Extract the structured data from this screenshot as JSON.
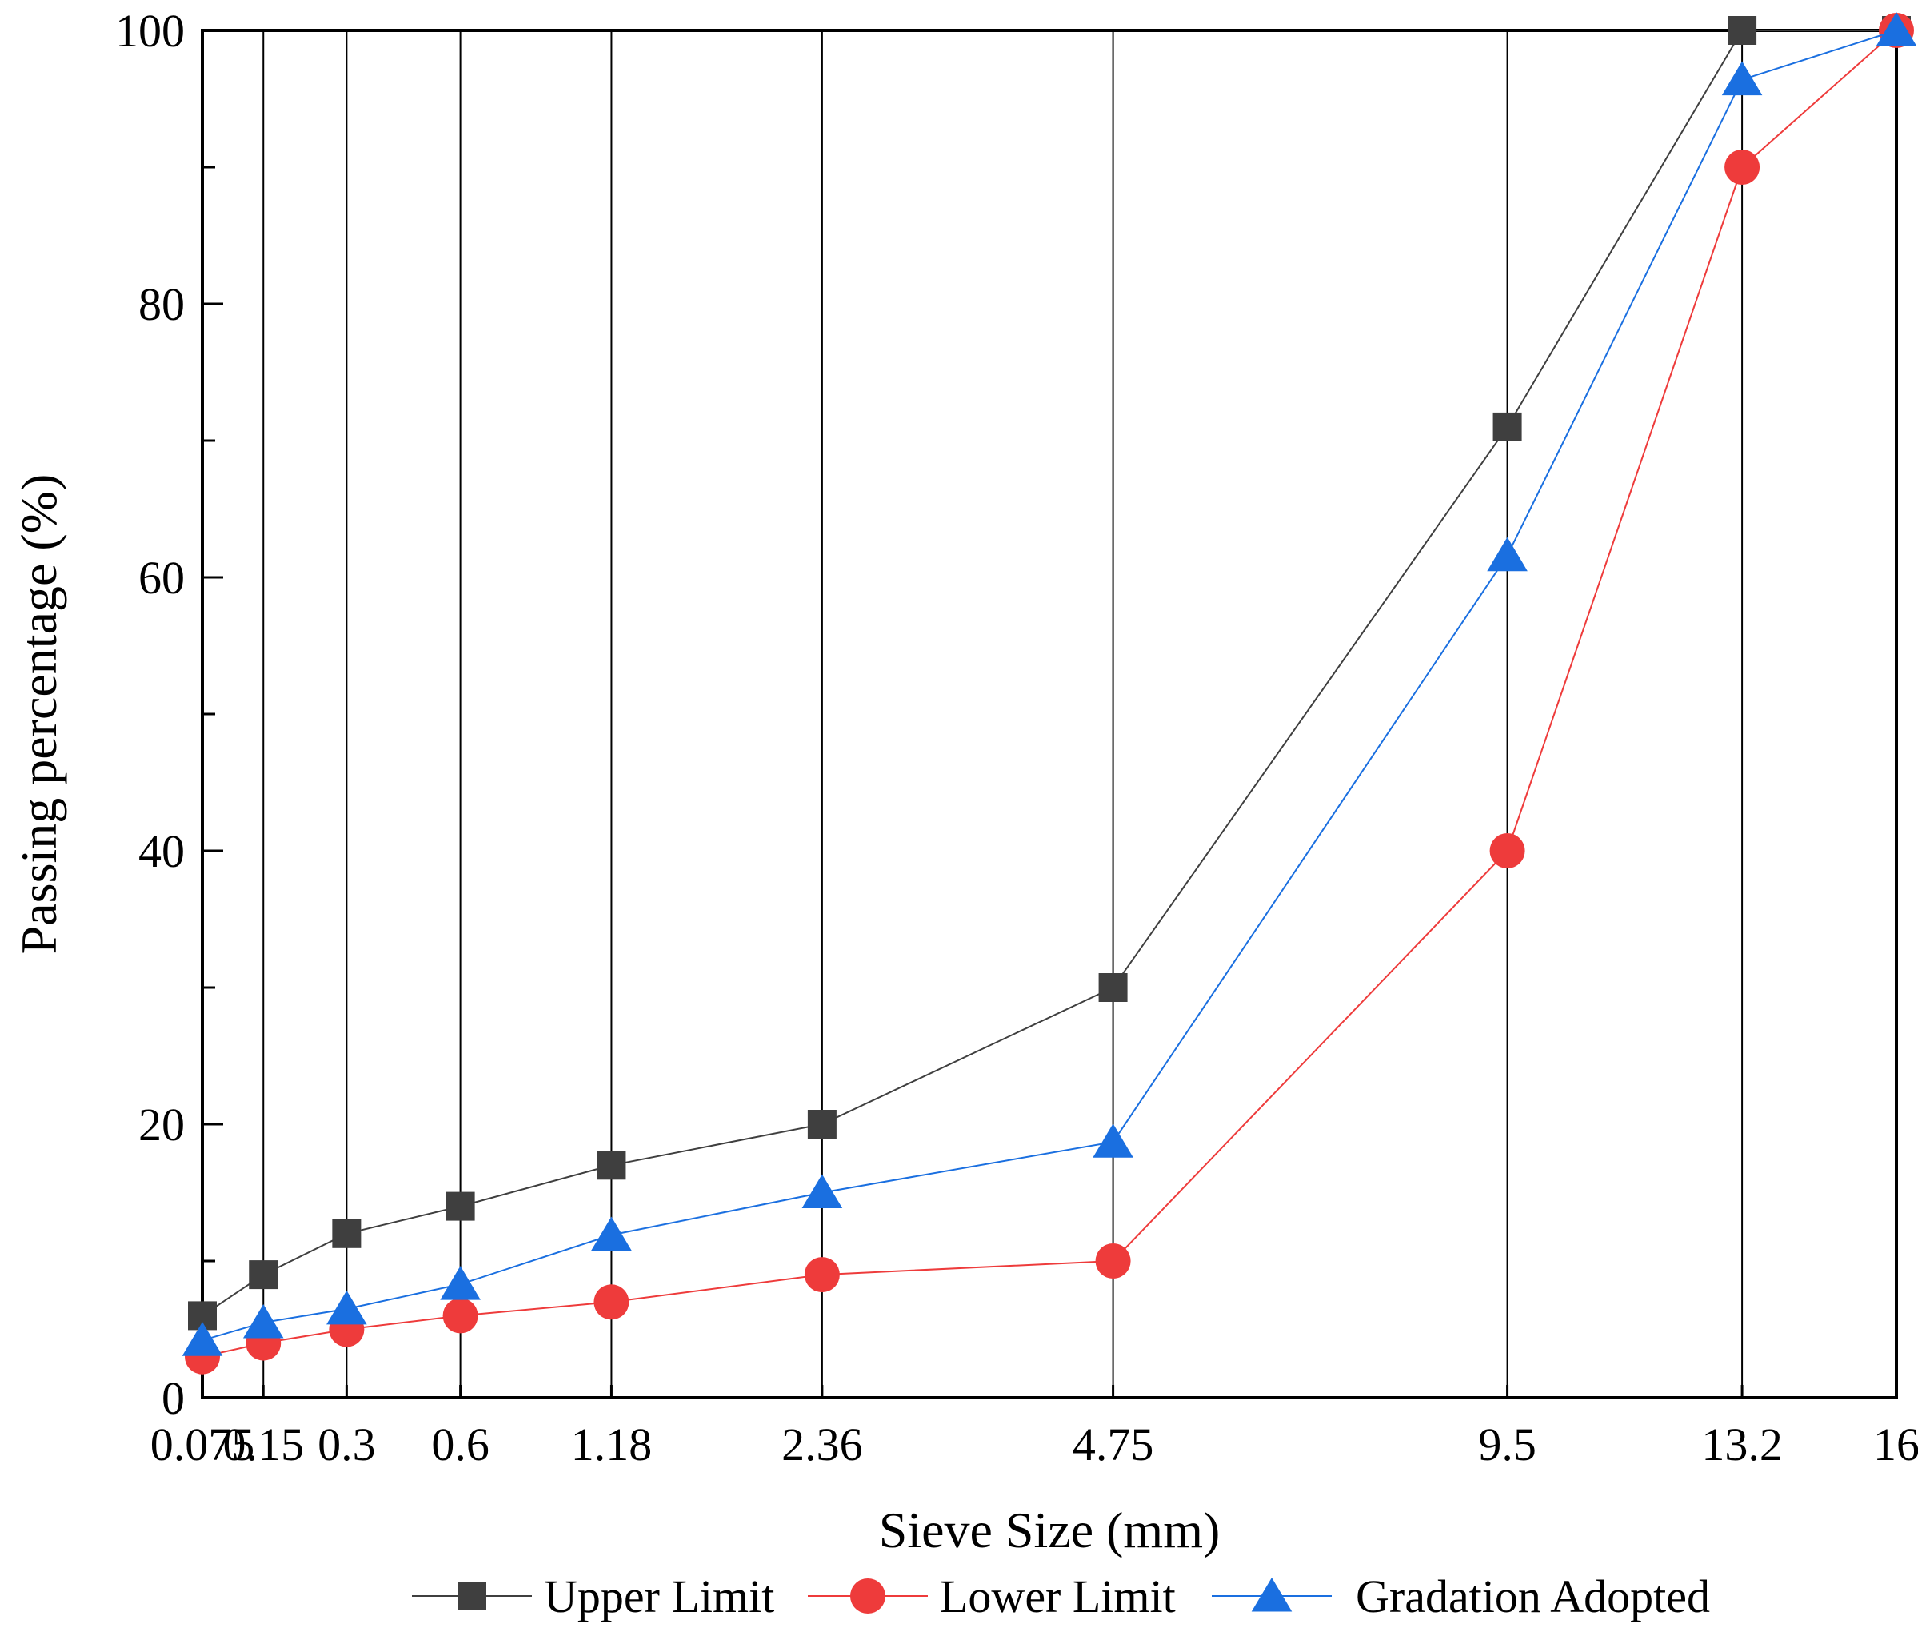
{
  "chart_data": {
    "type": "line",
    "title": "",
    "xlabel": "Sieve Size (mm)",
    "ylabel": "Passing percentage (%)",
    "x_scale": "power-0.45",
    "categories": [
      "0.075",
      "0.15",
      "0.3",
      "0.6",
      "1.18",
      "2.36",
      "4.75",
      "9.5",
      "13.2",
      "16"
    ],
    "x": [
      0.075,
      0.15,
      0.3,
      0.6,
      1.18,
      2.36,
      4.75,
      9.5,
      13.2,
      16
    ],
    "ylim": [
      0,
      100
    ],
    "yticks": [
      "0",
      "20",
      "40",
      "60",
      "80",
      "100"
    ],
    "grid": "vertical lines at each sieve size",
    "legend_position": "bottom",
    "series": [
      {
        "name": "Upper Limit",
        "marker": "square",
        "color": "#3f3f3f",
        "values": [
          6,
          9,
          12,
          14,
          17,
          20,
          30,
          71,
          100,
          100
        ]
      },
      {
        "name": "Lower Limit",
        "marker": "circle",
        "color": "#ee3b3b",
        "values": [
          3,
          4,
          5,
          6,
          7,
          9,
          10,
          40,
          90,
          100
        ]
      },
      {
        "name": "Gradation Adopted",
        "marker": "triangle",
        "color": "#1a6fe0",
        "values": [
          4.2,
          5.5,
          6.5,
          8.3,
          11.9,
          15.0,
          18.7,
          61.6,
          96.4,
          100
        ]
      }
    ]
  }
}
